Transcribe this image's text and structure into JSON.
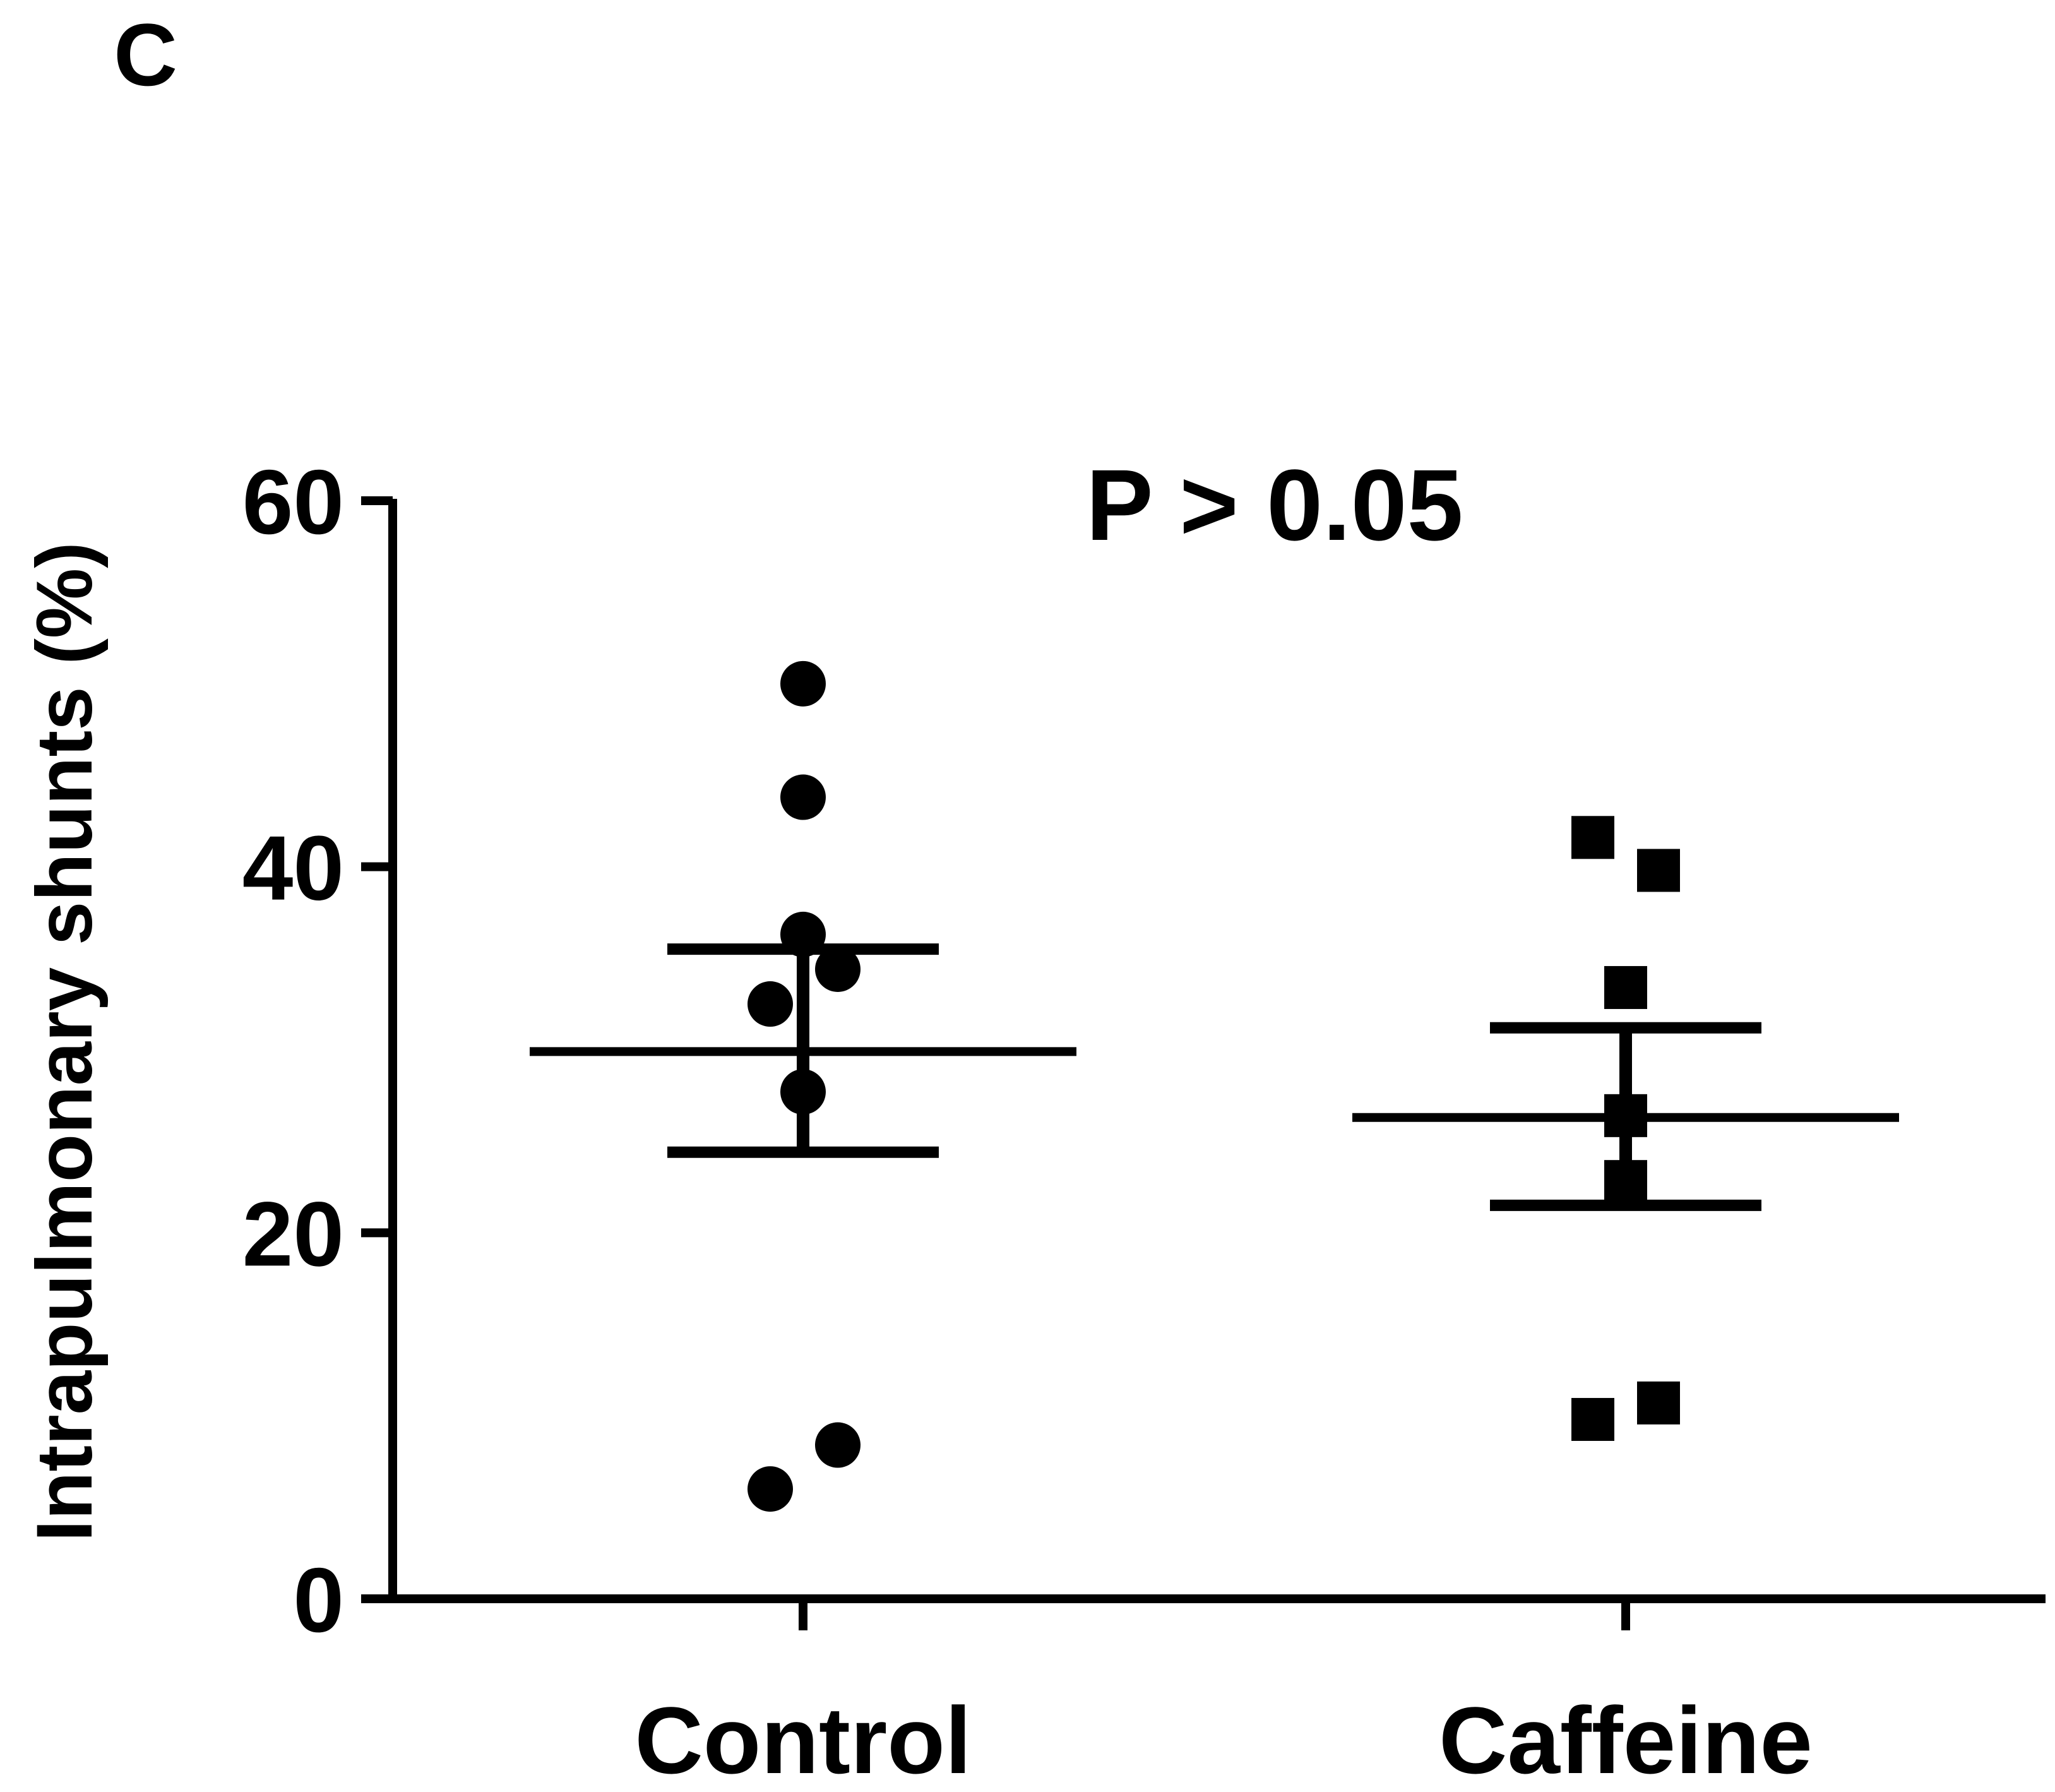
{
  "panel_label": "C",
  "colors": {
    "ink": "#000000",
    "background": "#ffffff"
  },
  "chart_data": {
    "type": "scatter",
    "title": "",
    "annotation": "P > 0.05",
    "xlabel": "",
    "ylabel": "Intrapulmonary shunts (%)",
    "ylim": [
      0,
      60
    ],
    "yticks": [
      "0",
      "20",
      "40",
      "60"
    ],
    "grid": false,
    "categories": [
      "Control",
      "Caffeine"
    ],
    "series": [
      {
        "name": "Control",
        "marker": "circle",
        "values": [
          50.0,
          43.8,
          36.3,
          34.4,
          32.5,
          27.7,
          8.4,
          6.0
        ],
        "mean": 29.9,
        "sem_upper": 35.5,
        "sem_lower": 24.4
      },
      {
        "name": "Caffeine",
        "marker": "square",
        "values": [
          41.6,
          39.8,
          33.4,
          26.4,
          22.8,
          10.7,
          9.8
        ],
        "mean": 26.3,
        "sem_upper": 31.2,
        "sem_lower": 21.5
      }
    ]
  }
}
